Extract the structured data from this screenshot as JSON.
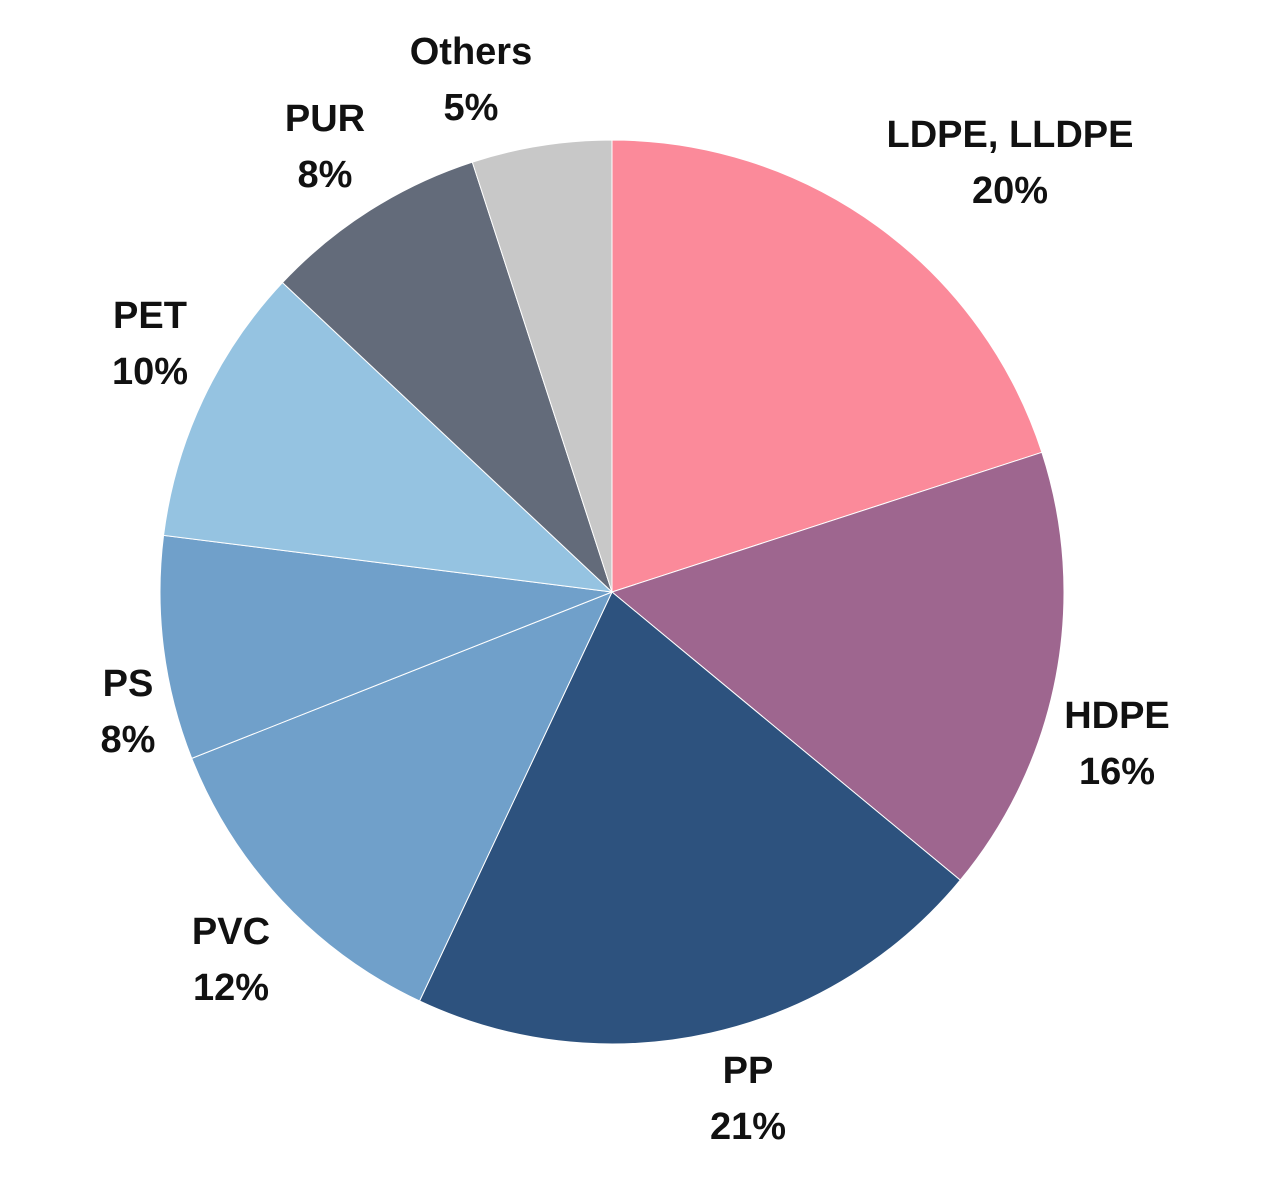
{
  "chart_data": {
    "type": "pie",
    "start": "12 o'clock",
    "direction": "clockwise",
    "slices": [
      {
        "name": "LDPE, LLDPE",
        "value": 20,
        "value_label": "20%",
        "color": "#FB8A9A"
      },
      {
        "name": "HDPE",
        "value": 16,
        "value_label": "16%",
        "color": "#9E668F"
      },
      {
        "name": "PP",
        "value": 21,
        "value_label": "21%",
        "color": "#2D527E"
      },
      {
        "name": "PVC",
        "value": 12,
        "value_label": "12%",
        "color": "#70A0CA"
      },
      {
        "name": "PS",
        "value": 8,
        "value_label": "8%",
        "color": "#70A0CA"
      },
      {
        "name": "PET",
        "value": 10,
        "value_label": "10%",
        "color": "#95C3E1"
      },
      {
        "name": "PUR",
        "value": 8,
        "value_label": "8%",
        "color": "#636B7A"
      },
      {
        "name": "Others",
        "value": 5,
        "value_label": "5%",
        "color": "#C8C8C8"
      }
    ]
  }
}
